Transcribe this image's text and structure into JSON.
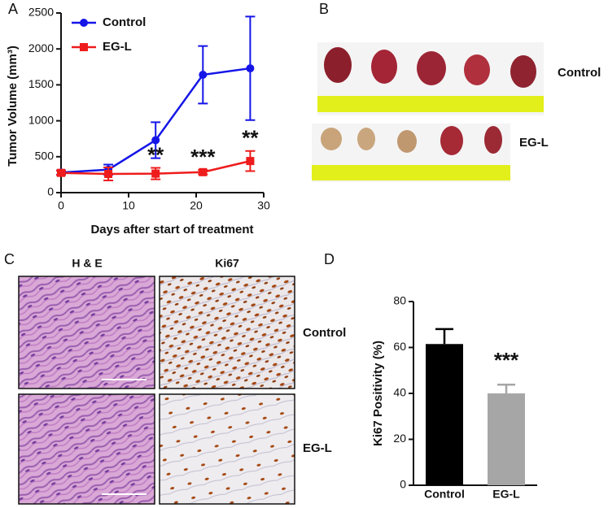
{
  "panel_labels": [
    "A",
    "B",
    "C",
    "D"
  ],
  "chart_data": [
    {
      "type": "line",
      "xlabel": "Days after start of treatment",
      "ylabel": "Tumor Volume (mm³)",
      "x": [
        0,
        7,
        14,
        21,
        28
      ],
      "xlim": [
        0,
        30
      ],
      "xticks": [
        0,
        10,
        20,
        30
      ],
      "ylim": [
        0,
        2500
      ],
      "yticks": [
        0,
        500,
        1000,
        1500,
        2000,
        2500
      ],
      "legend": "upper left",
      "series": [
        {
          "name": "Control",
          "color": "#1515e8",
          "marker": "circle",
          "values": [
            280,
            320,
            730,
            1640,
            1730
          ],
          "errors": [
            30,
            70,
            250,
            400,
            720
          ],
          "significance": [
            null,
            null,
            null,
            null,
            null
          ]
        },
        {
          "name": "EG-L",
          "color": "#ee1c1c",
          "marker": "square",
          "values": [
            275,
            260,
            265,
            285,
            440
          ],
          "errors": [
            30,
            90,
            80,
            30,
            140
          ],
          "significance": [
            null,
            null,
            "**",
            "***",
            "**"
          ]
        }
      ]
    },
    {
      "type": "bar",
      "ylabel": "Ki67 Positivity (%)",
      "categories": [
        "Control",
        "EG-L"
      ],
      "values": [
        61.5,
        40
      ],
      "errors": [
        6.5,
        3.8
      ],
      "colors": [
        "#000000",
        "#a6a6a6"
      ],
      "significance": [
        null,
        "***"
      ],
      "ylim": [
        0,
        80
      ],
      "yticks": [
        0,
        20,
        40,
        60,
        80
      ]
    }
  ],
  "images": {
    "B": {
      "rows": [
        "Control",
        "EG-L"
      ]
    },
    "C": {
      "columns": [
        "H & E",
        "Ki67"
      ],
      "rows": [
        "Control",
        "EG-L"
      ]
    }
  }
}
